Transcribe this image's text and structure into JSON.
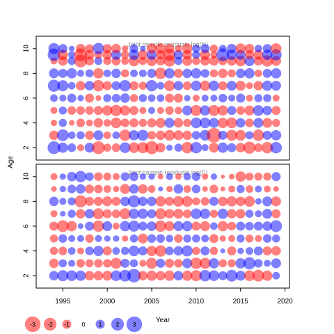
{
  "colors": {
    "positive": "#0000ff",
    "negative": "#ff0000",
    "frame": "#000000",
    "title": "#8c8c8c"
  },
  "chart_data": [
    {
      "type": "scatter",
      "title": "Joint sample residuals log(N)",
      "xlabel": "Year",
      "ylabel": "Age",
      "xlim": [
        1992,
        2020.5
      ],
      "ylim": [
        1,
        11
      ],
      "x_ticks": [
        1995,
        2000,
        2005,
        2010,
        2015,
        2020
      ],
      "y_ticks": [
        2,
        4,
        6,
        8,
        10
      ],
      "years": [
        1994,
        1995,
        1996,
        1997,
        1998,
        1999,
        2000,
        2001,
        2002,
        2003,
        2004,
        2005,
        2006,
        2007,
        2008,
        2009,
        2010,
        2011,
        2012,
        2013,
        2014,
        2015,
        2016,
        2017,
        2018,
        2019
      ],
      "ages": [
        2,
        3,
        4,
        5,
        6,
        7,
        8,
        9,
        10
      ],
      "residuals": [
        [
          2.0,
          1.3,
          0.9,
          -0.6,
          1.2,
          -2.0,
          -0.8,
          -0.9,
          1.4,
          -1.4,
          -1.5,
          -2.1,
          -1.1,
          0.5,
          0.8,
          -1.6,
          1.6,
          0.6,
          -1.2,
          1.3,
          1.0,
          -1.1,
          -1.8,
          -0.9,
          -1.6,
          1.6
        ],
        [
          -1.1,
          1.7,
          0.7,
          0.8,
          -1.0,
          1.2,
          -0.7,
          0.7,
          -1.6,
          1.3,
          1.5,
          -0.9,
          -1.1,
          -1.4,
          -1.2,
          -1.1,
          0.9,
          1.4,
          -2.6,
          1.0,
          -1.5,
          -1.4,
          0.8,
          -1.6,
          1.0,
          1.3
        ],
        [
          -0.5,
          0.8,
          -0.4,
          -0.9,
          -0.6,
          -1.1,
          -0.7,
          -1.4,
          -0.9,
          -1.0,
          -0.8,
          -1.0,
          -1.2,
          1.2,
          -1.1,
          -0.8,
          1.4,
          1.4,
          1.2,
          -1.3,
          -1.4,
          1.1,
          -0.9,
          1.2,
          -1.2,
          -0.8
        ],
        [
          -0.6,
          0.8,
          -0.9,
          -0.9,
          -0.9,
          -1.0,
          -1.3,
          -1.6,
          -1.3,
          -1.0,
          -0.6,
          0.6,
          -0.6,
          -0.9,
          -0.7,
          1.2,
          -1.5,
          1.3,
          -1.5,
          -1.3,
          1.0,
          -0.9,
          -1.2,
          1.4,
          1.1,
          -1.0
        ],
        [
          0.7,
          0.6,
          1.0,
          0.5,
          -1.0,
          -0.4,
          0.8,
          0.9,
          1.1,
          -0.8,
          0.8,
          0.7,
          0.7,
          -1.0,
          -1.0,
          0.5,
          -0.6,
          0.6,
          0.6,
          0.9,
          0.6,
          1.0,
          -0.6,
          0.8,
          0.8,
          -0.6
        ],
        [
          1.8,
          1.5,
          0.7,
          -1.1,
          1.1,
          -1.6,
          -1.0,
          1.0,
          1.6,
          -1.0,
          -0.8,
          1.6,
          0.7,
          -1.4,
          1.1,
          -0.9,
          1.3,
          -1.3,
          1.3,
          -1.0,
          1.2,
          -1.2,
          -0.6,
          -1.1,
          1.3,
          1.2
        ],
        [
          1.2,
          1.0,
          1.3,
          0.6,
          0.8,
          -1.3,
          0.7,
          1.1,
          -0.8,
          0.7,
          0.7,
          1.0,
          -1.6,
          1.3,
          -1.0,
          1.1,
          1.3,
          0.9,
          -0.8,
          -1.1,
          -0.8,
          1.1,
          1.3,
          -0.7,
          1.0,
          1.3
        ],
        [
          -0.6,
          -1.1,
          0.8,
          -2.0,
          -1.0,
          0.8,
          -0.8,
          -1.0,
          -0.7,
          -1.4,
          -0.8,
          -1.3,
          -1.0,
          -1.6,
          0.8,
          -1.2,
          -0.8,
          -1.1,
          -1.1,
          -0.9,
          -1.1,
          -1.4,
          1.3,
          -1.0,
          -1.6,
          -1.2
        ],
        [
          1.9,
          -1.3,
          0.6,
          -2.0,
          -1.1,
          -0.8,
          -1.1,
          1.2,
          -0.8,
          1.3,
          -1.2,
          1.2,
          -1.1,
          -1.8,
          1.1,
          -1.1,
          0.8,
          -1.3,
          -0.6,
          2.0,
          1.3,
          1.2,
          -1.0,
          -1.2,
          1.3,
          1.5
        ],
        [
          1.5,
          1.0,
          0.4,
          -1.1,
          -0.9,
          1.6,
          -1.0,
          -1.1,
          -0.5,
          0.9,
          0.4,
          -1.2,
          -1.3,
          -1.1,
          -0.6,
          -1.3,
          0.8,
          1.0,
          -0.8,
          0.7,
          1.1,
          -1.3,
          -1.1,
          0.7,
          1.0,
          -1.4
        ]
      ],
      "residual_ages": [
        2,
        3,
        4,
        5,
        6,
        7,
        8,
        9,
        9.5,
        10
      ]
    },
    {
      "type": "scatter",
      "title": "Joint sample residuals log(F)",
      "xlabel": "Year",
      "ylabel": "Age",
      "xlim": [
        1992,
        2020.5
      ],
      "ylim": [
        1,
        11
      ],
      "x_ticks": [
        1995,
        2000,
        2005,
        2010,
        2015,
        2020
      ],
      "y_ticks": [
        2,
        4,
        6,
        8,
        10
      ],
      "years": [
        1994,
        1995,
        1996,
        1997,
        1998,
        1999,
        2000,
        2001,
        2002,
        2003,
        2004,
        2005,
        2006,
        2007,
        2008,
        2009,
        2010,
        2011,
        2012,
        2013,
        2014,
        2015,
        2016,
        2017,
        2018,
        2019
      ],
      "ages": [
        2,
        3,
        4,
        5,
        6,
        7,
        8,
        9,
        10
      ],
      "residuals": [
        [
          1.1,
          1.5,
          1.4,
          1.3,
          -1.1,
          -1.1,
          -1.2,
          1.4,
          1.7,
          2.2,
          -1.1,
          -1.3,
          -1.1,
          -1.3,
          1.1,
          -1.3,
          -1.5,
          1.6,
          1.4,
          1.0,
          1.7,
          1.2,
          -1.4,
          -1.7,
          -1.3,
          0.7
        ],
        [
          -1.1,
          0.8,
          0.6,
          -0.9,
          -0.8,
          -0.9,
          -0.9,
          -1.5,
          1.0,
          0.8,
          -0.6,
          -1.5,
          1.0,
          -1.0,
          -0.9,
          1.2,
          -1.6,
          -1.5,
          1.3,
          -0.8,
          -0.8,
          1.3,
          1.8,
          0.9,
          0.6,
          1.2
        ],
        [
          -0.8,
          -0.9,
          0.7,
          -0.6,
          0.9,
          1.3,
          -1.0,
          0.7,
          0.8,
          1.4,
          1.0,
          -1.3,
          -1.6,
          0.9,
          1.1,
          1.5,
          -0.8,
          1.0,
          -0.8,
          0.3,
          -1.0,
          0.5,
          0.7,
          1.0,
          -1.0,
          -1.1
        ],
        [
          -0.8,
          0.9,
          0.6,
          0.6,
          -0.9,
          0.6,
          0.5,
          0.5,
          -0.5,
          0.8,
          -1.2,
          0.9,
          0.9,
          0.7,
          -0.9,
          0.8,
          0.8,
          0.7,
          -1.0,
          -0.5,
          -0.6,
          0.8,
          -0.8,
          -0.6,
          0.9,
          0.8
        ],
        [
          -1.0,
          -1.7,
          -1.3,
          0.4,
          1.0,
          -1.6,
          1.2,
          -0.6,
          1.3,
          1.5,
          1.0,
          1.1,
          -1.6,
          -1.2,
          1.2,
          1.3,
          -1.0,
          -1.2,
          0.7,
          -1.3,
          -0.9,
          1.0,
          0.9,
          1.0,
          1.1,
          1.7
        ],
        [
          -0.6,
          0.4,
          0.8,
          -1.1,
          1.1,
          -1.5,
          -1.0,
          -0.9,
          -1.5,
          1.3,
          1.3,
          1.0,
          -1.5,
          -1.1,
          -1.2,
          -0.9,
          1.4,
          1.3,
          -0.8,
          1.3,
          -1.1,
          -1.1,
          0.8,
          0.6,
          1.2,
          -1.0
        ],
        [
          1.1,
          0.6,
          0.8,
          -1.8,
          -1.0,
          -1.0,
          -1.2,
          -1.0,
          1.1,
          1.8,
          1.1,
          1.1,
          -1.3,
          -1.0,
          -1.4,
          -1.4,
          -0.8,
          -0.9,
          1.0,
          -1.1,
          -1.3,
          -1.1,
          -1.4,
          0.5,
          1.2,
          -1.2
        ],
        [
          -0.4,
          0.5,
          0.9,
          1.1,
          -1.0,
          -0.9,
          -0.7,
          -0.5,
          -1.2,
          1.1,
          -1.1,
          -0.7,
          0.3,
          -0.5,
          1.1,
          -0.7,
          0.9,
          -0.4,
          -0.9,
          -0.3,
          -0.6,
          0.8,
          -0.7,
          0.6,
          -0.6,
          -0.4
        ],
        [
          -0.6,
          0.5,
          1.1,
          1.6,
          0.9,
          -0.9,
          -0.8,
          -0.6,
          0.9,
          1.0,
          0.5,
          0.5,
          -0.4,
          0.6,
          -0.5,
          0.7,
          0.9,
          -0.5,
          0.5,
          -0.2,
          -0.4,
          -1.3,
          -0.8,
          -0.8,
          -0.8,
          1.0
        ]
      ]
    }
  ],
  "legend": {
    "values": [
      -3,
      -2,
      -1,
      0,
      1,
      2,
      3
    ],
    "labels": [
      "-3",
      "-2",
      "-1",
      "0",
      "1",
      "2",
      "3"
    ],
    "xlabel": "Year"
  }
}
